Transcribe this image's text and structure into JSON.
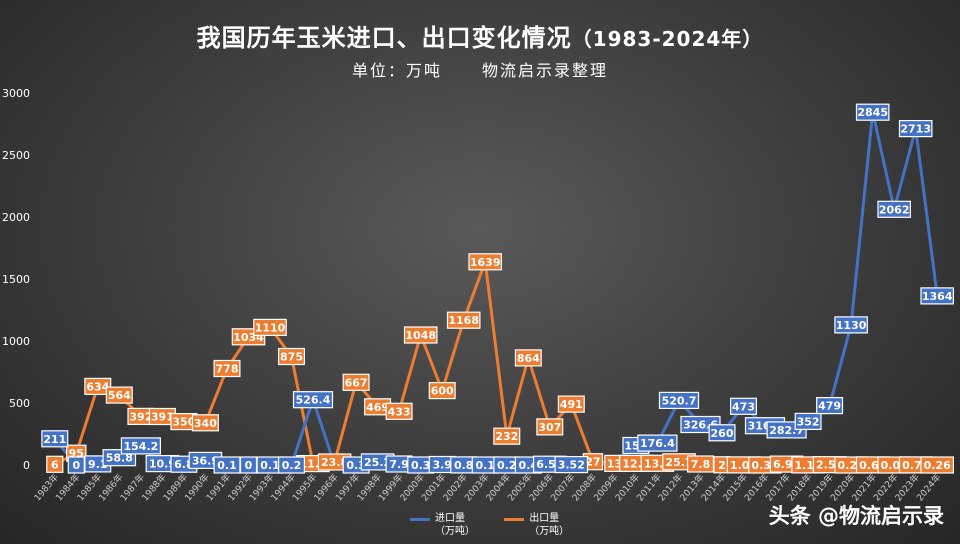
{
  "title": "我国历年玉米进口、出口变化情况",
  "title_years": "（1983-2024年）",
  "subtitle_unit": "单位：万吨",
  "subtitle_source": "物流启示录整理",
  "watermark": "头条 @物流启示录",
  "colors": {
    "import": "#4472c4",
    "export": "#ed7d31"
  },
  "chart_data": {
    "type": "line",
    "title": "我国历年玉米进口、出口变化情况（1983-2024年）",
    "ylabel": "万吨",
    "ylim": [
      0,
      3000
    ],
    "yticks": [
      "0",
      "500",
      "1000",
      "1500",
      "2000",
      "2500",
      "3000"
    ],
    "categories": [
      "1983年",
      "1984年",
      "1985年",
      "1986年",
      "1987年",
      "1988年",
      "1989年",
      "1990年",
      "1991年",
      "1992年",
      "1993年",
      "1994年",
      "1995年",
      "1996年",
      "1997年",
      "1998年",
      "1999年",
      "2000年",
      "2001年",
      "2002年",
      "2003年",
      "2004年",
      "2005年",
      "2006年",
      "2007年",
      "2008年",
      "2009年",
      "2010年",
      "2011年",
      "2012年",
      "2013年",
      "2014年",
      "2015年",
      "2016年",
      "2017年",
      "2018年",
      "2019年",
      "2020年",
      "2021年",
      "2022年",
      "2023年",
      "2024年"
    ],
    "series": [
      {
        "name": "进口量",
        "unit": "（万吨）",
        "key": "import",
        "values": [
          211,
          0,
          9.1,
          58.8,
          154.2,
          10.9,
          6.8,
          36.9,
          0.1,
          0,
          0.1,
          0.2,
          526.4,
          0,
          0.3,
          25.2,
          7.9,
          0.3,
          3.9,
          0.8,
          0.1,
          0.2,
          0.4,
          6.52,
          3.52,
          5,
          8.4,
          157,
          176.4,
          520.7,
          326.6,
          260,
          473,
          316.8,
          282.7,
          352,
          479,
          1130,
          2845,
          2062,
          2713,
          1364
        ],
        "labels": [
          "211",
          "0",
          "9.1",
          "58.8",
          "154.2",
          "10.9",
          "6.8",
          "36.9",
          "0.1",
          "0",
          "0.1",
          "0.2",
          "526.4",
          "",
          "0.3",
          "25.2",
          "7.9",
          "0.3",
          "3.9",
          "0.8",
          "0.1",
          "0.2",
          "0.4",
          "6.52",
          "3.52",
          "",
          "",
          "157",
          "176.4",
          "520.7",
          "326.6",
          "260",
          "473",
          "316.8",
          "282.7",
          "352",
          "479",
          "1130",
          "2845",
          "2062",
          "2713",
          "1364"
        ]
      },
      {
        "name": "出口量",
        "unit": "（万吨）",
        "key": "export",
        "values": [
          6,
          95,
          634,
          564,
          392,
          391,
          350,
          340,
          778,
          1034,
          1110,
          875,
          11.5,
          23.8,
          667,
          469,
          433,
          1048,
          600,
          1168,
          1639,
          232,
          864,
          307,
          491,
          27,
          13,
          12.7,
          13.6,
          25.7,
          7.8,
          2,
          1.08,
          0.36,
          6.96,
          1.14,
          2.54,
          0.25,
          0.64,
          0.04,
          0.75,
          0.26
        ],
        "labels": [
          "6",
          "95",
          "634",
          "564",
          "392",
          "391",
          "350",
          "340",
          "778",
          "1034",
          "1110",
          "875",
          "11.5",
          "23.8",
          "667",
          "469",
          "433",
          "1048",
          "600",
          "1168",
          "1639",
          "232",
          "864",
          "307",
          "491",
          "27",
          "13",
          "12.7",
          "13.6",
          "25.7",
          "7.8",
          "2",
          "1.08",
          "0.36",
          "6.96",
          "1.14",
          "2.54",
          "0.25",
          "0.64",
          "0.04",
          "0.75",
          "0.26"
        ]
      }
    ],
    "legend": "bottom"
  }
}
